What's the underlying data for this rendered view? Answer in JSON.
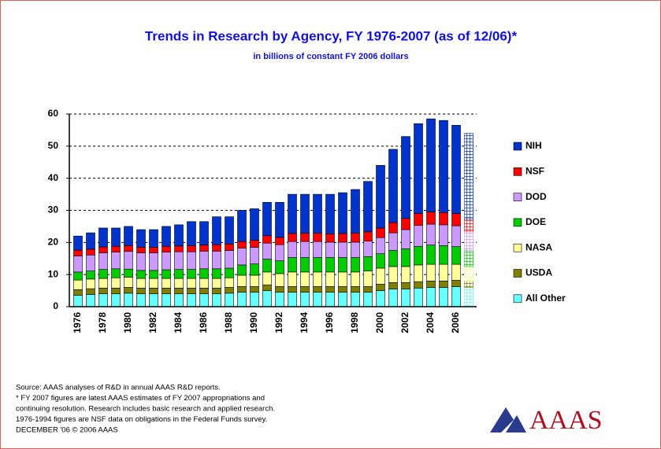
{
  "chart_data": {
    "type": "stacked_bar",
    "title": "Trends in Research by Agency, FY 1976-2007 (as of 12/06)*",
    "subtitle": "in billions of constant FY 2006 dollars",
    "categories": [
      "1976",
      null,
      "1978",
      null,
      "1980",
      null,
      "1982",
      null,
      "1984",
      null,
      "1986",
      null,
      "1988",
      null,
      "1990",
      null,
      "1992",
      null,
      "1994",
      null,
      "1996",
      null,
      "1998",
      null,
      "2000",
      null,
      "2002",
      null,
      "2004",
      null,
      "2006",
      null
    ],
    "series": [
      {
        "name": "All Other",
        "color": "#66ffff",
        "values": [
          3.5,
          3.8,
          4,
          4,
          4.2,
          4,
          4,
          4,
          4,
          4,
          4,
          4,
          4.2,
          4.5,
          4.5,
          5,
          4.5,
          4.5,
          4.5,
          4.5,
          4.5,
          4.5,
          4.5,
          4.5,
          5,
          5.5,
          5.5,
          5.8,
          6,
          6,
          6.2,
          6
        ]
      },
      {
        "name": "USDA",
        "color": "#808000",
        "values": [
          1.8,
          1.8,
          1.8,
          1.8,
          1.8,
          1.8,
          1.8,
          1.8,
          1.8,
          1.8,
          1.8,
          1.8,
          1.8,
          1.8,
          1.8,
          1.8,
          1.8,
          1.8,
          1.8,
          1.8,
          1.8,
          1.8,
          1.8,
          1.8,
          2,
          2,
          2,
          2,
          2,
          2,
          2,
          2
        ]
      },
      {
        "name": "NASA",
        "color": "#ffff99",
        "values": [
          3,
          3,
          3,
          3.2,
          3.2,
          3,
          3,
          3,
          3,
          3,
          3,
          3,
          3,
          3.5,
          3.5,
          4,
          4,
          4.5,
          4.5,
          4.5,
          4.5,
          4.5,
          4.5,
          4.8,
          5,
          5,
          5,
          5.2,
          5.2,
          5.2,
          5,
          4.5
        ]
      },
      {
        "name": "DOE",
        "color": "#00cc00",
        "values": [
          2.5,
          2.5,
          2.8,
          2.8,
          2.5,
          2.5,
          2.5,
          2.7,
          2.8,
          2.8,
          3,
          3,
          3,
          3.2,
          3.5,
          4,
          4,
          4.5,
          4.5,
          4.5,
          4.5,
          4.5,
          4.5,
          4.5,
          4.5,
          5,
          5.5,
          5.8,
          6,
          5.8,
          5.5,
          5
        ]
      },
      {
        "name": "DOD",
        "color": "#cc99ff",
        "values": [
          5,
          5,
          5.2,
          5.2,
          5.5,
          5.5,
          5.5,
          5.5,
          5.5,
          5.5,
          5.5,
          5.5,
          5.5,
          5.2,
          5.2,
          5,
          5,
          5,
          5,
          5,
          4.8,
          4.8,
          4.8,
          4.8,
          5,
          5.5,
          6,
          6.5,
          6.5,
          6.5,
          6.5,
          6
        ]
      },
      {
        "name": "NSF",
        "color": "#ff0000",
        "values": [
          1.8,
          1.8,
          1.8,
          1.8,
          1.8,
          1.7,
          1.7,
          1.8,
          1.8,
          1.9,
          1.9,
          2,
          2,
          2.1,
          2.2,
          2.3,
          2.3,
          2.5,
          2.6,
          2.6,
          2.6,
          2.7,
          2.8,
          2.9,
          3,
          3.2,
          3.5,
          3.7,
          3.8,
          3.8,
          3.8,
          3.8
        ]
      },
      {
        "name": "NIH",
        "color": "#0033cc",
        "values": [
          4.4,
          5.1,
          5.9,
          5.7,
          6,
          5.5,
          5.5,
          6.2,
          6.6,
          7.5,
          7.3,
          8.7,
          8.5,
          9.7,
          9.8,
          10.4,
          10.9,
          12.2,
          12.1,
          12.1,
          12.3,
          12.7,
          13.6,
          15.7,
          19.5,
          22.8,
          25.5,
          28,
          29,
          28.7,
          27.5,
          26.7
        ]
      }
    ],
    "ylim": [
      0,
      60
    ],
    "yticks": [
      0,
      10,
      20,
      30,
      40,
      50,
      60
    ],
    "grid": true,
    "source": [
      "Source: AAAS analyses of R&D in annual AAAS R&D reports.",
      "* FY 2007 figures are latest AAAS estimates of FY 2007 appropriations and",
      "continuing resolution. Research includes basic research and applied research.",
      "1976-1994 figures are NSF data on  obligations in the Federal Funds survey.",
      "DECEMBER '06 © 2006 AAAS"
    ],
    "logo": "AAAS"
  }
}
